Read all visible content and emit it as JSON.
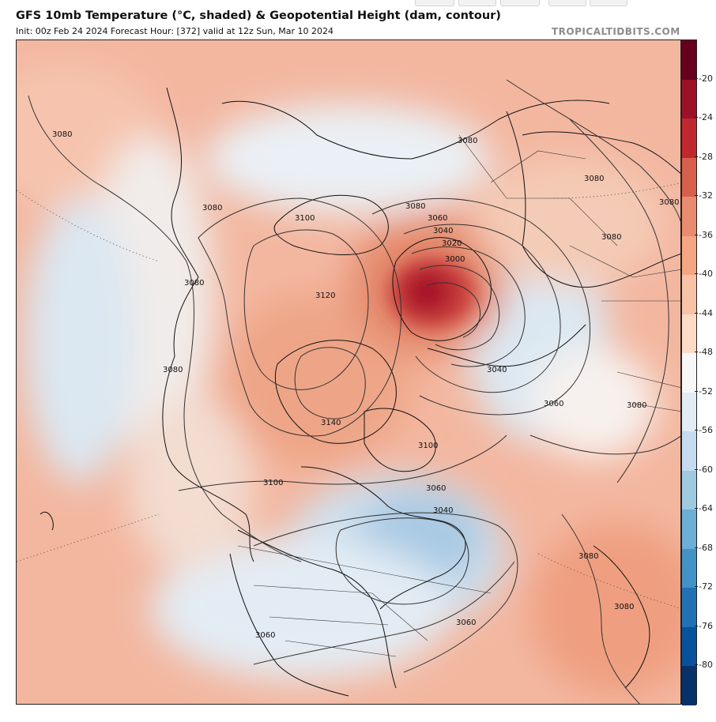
{
  "header": {
    "title": "GFS 10mb Temperature (°C, shaded) & Geopotential Height (dam, contour)",
    "subtitle": "Init: 00z Feb 24 2024   Forecast Hour: [372]   valid at 12z Sun, Mar 10 2024",
    "brand": "TROPICALTIDBITS.COM"
  },
  "colorbar": {
    "labels": [
      "-20",
      "-24",
      "-28",
      "-32",
      "-36",
      "-40",
      "-44",
      "-48",
      "-52",
      "-56",
      "-60",
      "-64",
      "-68",
      "-72",
      "-76",
      "-80"
    ],
    "colors": [
      "#67001f",
      "#9b1127",
      "#c0282f",
      "#d6604d",
      "#e88b6e",
      "#f4a582",
      "#f8c2a6",
      "#fddbc7",
      "#f7f7f7",
      "#e1ecf4",
      "#c6dbef",
      "#9ecae1",
      "#6baed6",
      "#4292c6",
      "#2171b5",
      "#08519c",
      "#08306b"
    ]
  },
  "map": {
    "contour_labels": [
      "3080",
      "3080",
      "3080",
      "3080",
      "3080",
      "3080",
      "3080",
      "3080",
      "3080",
      "3080",
      "3080",
      "3080",
      "3100",
      "3100",
      "3100",
      "3120",
      "3140",
      "3060",
      "3060",
      "3060",
      "3060",
      "3060",
      "3040",
      "3040",
      "3040",
      "3020",
      "3000"
    ],
    "colors": {
      "warm": "#f4b299",
      "warm_light": "#f9d3c2",
      "cold_light": "#dfe9f2",
      "cold": "#b9d3e8",
      "hot_core": "#b2182b",
      "contour": "#333333",
      "coast": "#111111"
    }
  }
}
